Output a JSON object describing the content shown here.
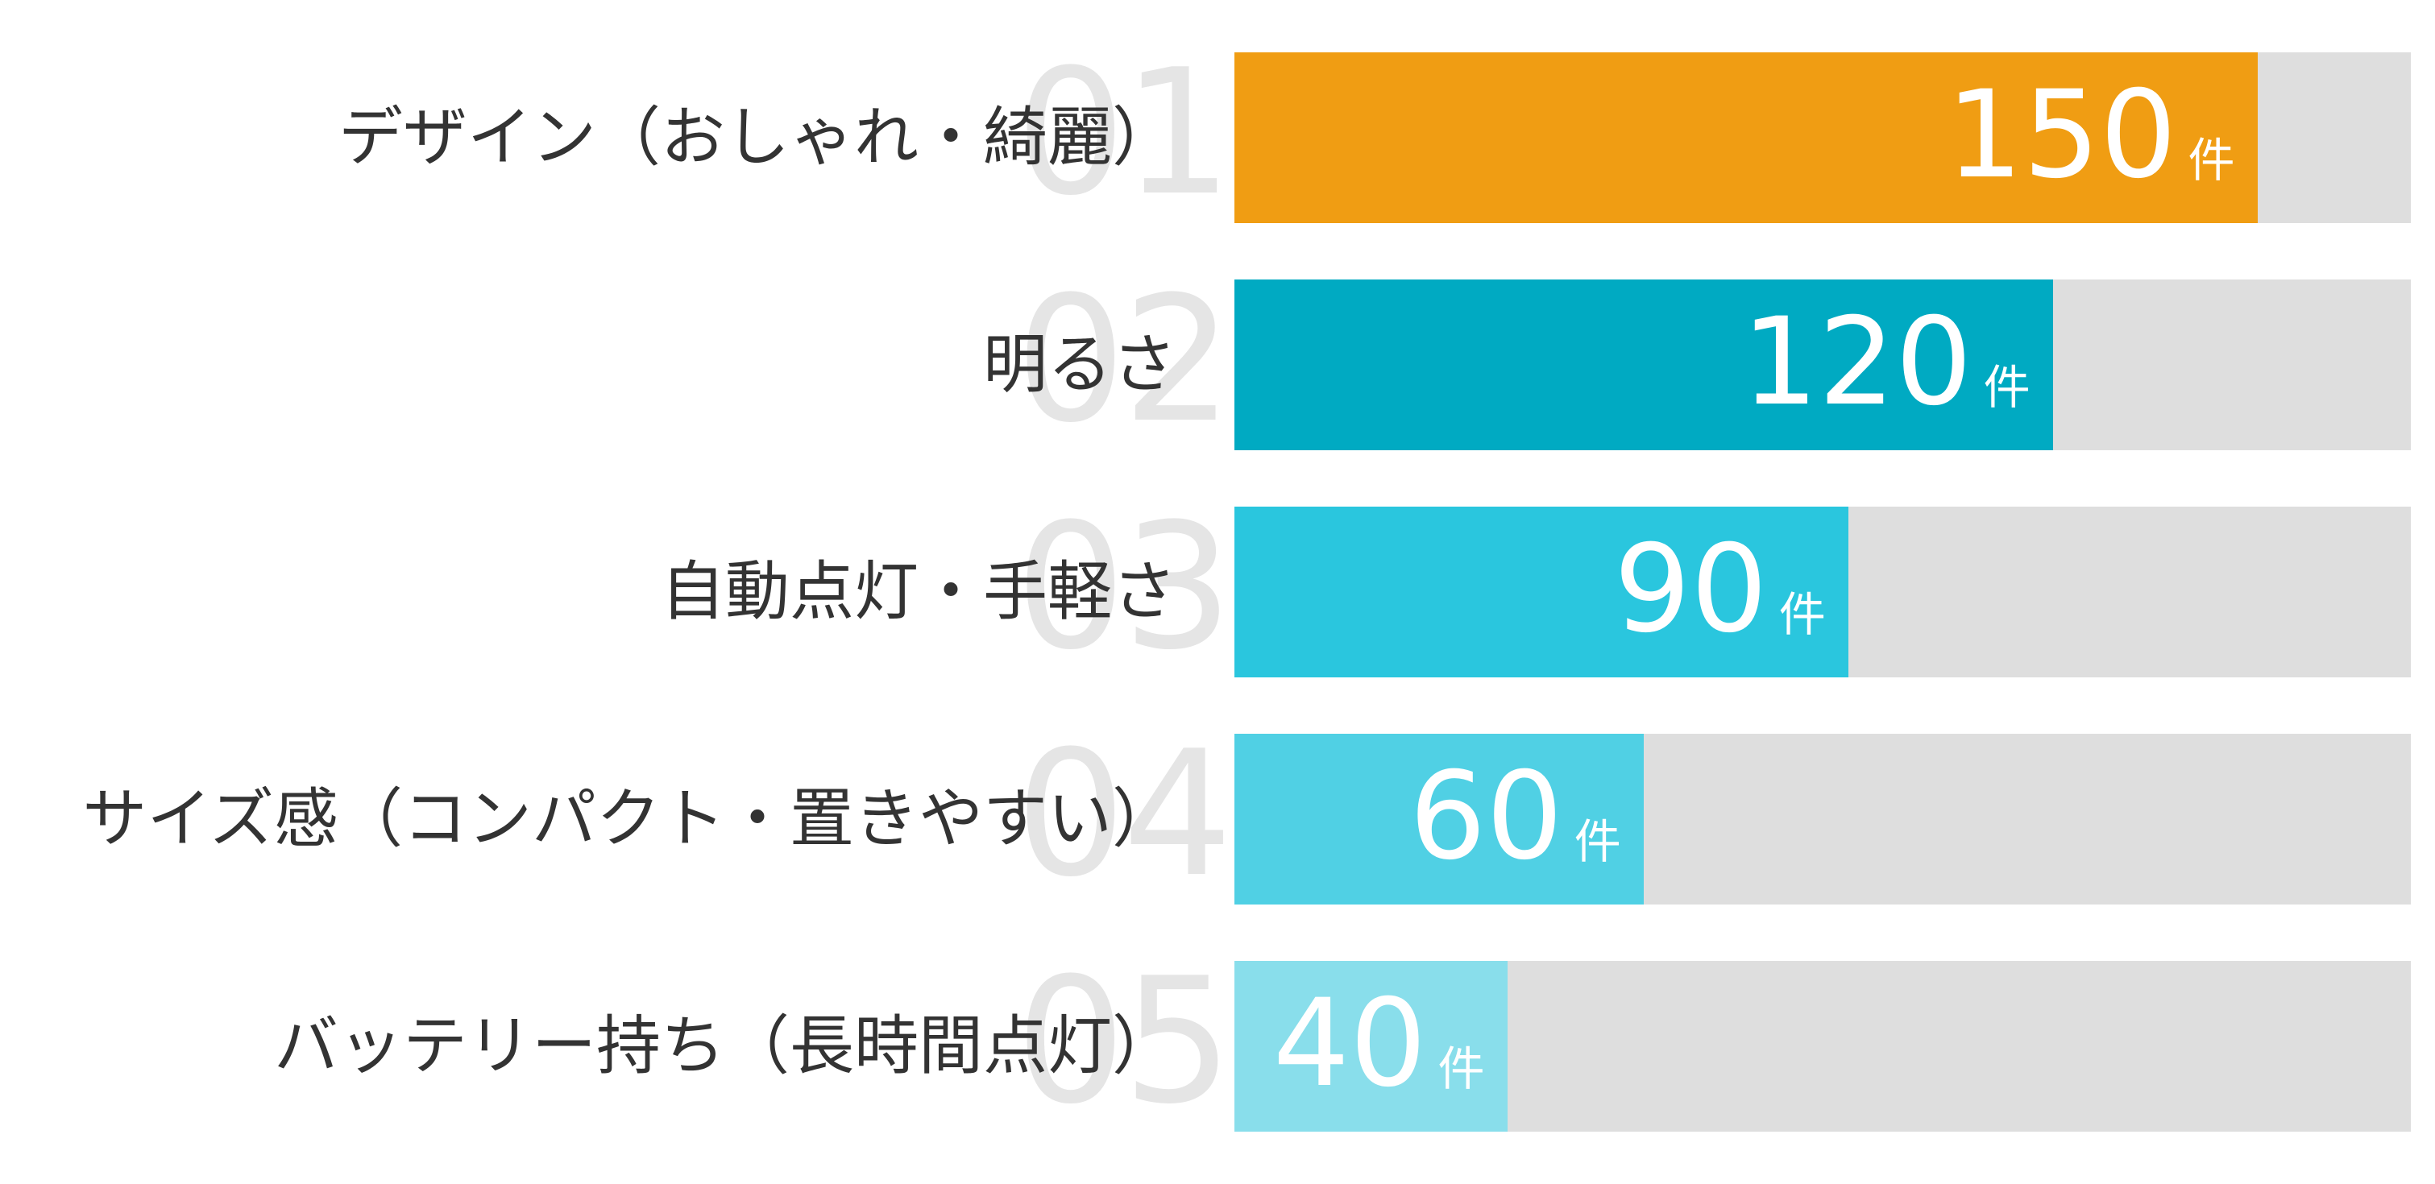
{
  "page": {
    "background_color": "#FFFFFF"
  },
  "chart_data": {
    "type": "bar",
    "orientation": "horizontal",
    "title": "",
    "xlabel": "",
    "ylabel": "",
    "grid": false,
    "legend": false,
    "xlim": [
      0,
      172.5
    ],
    "unit_suffix": "件",
    "categories": [
      "デザイン（おしゃれ・綺麗）",
      "明るさ",
      "自動点灯・手軽さ",
      "サイズ感（コンパクト・置きやすい）",
      "バッテリー持ち（長時間点灯）"
    ],
    "values": [
      150,
      120,
      90,
      60,
      40
    ],
    "rank_labels": [
      "01",
      "02",
      "03",
      "04",
      "05"
    ],
    "bar_colors": [
      "#F09D13",
      "#00AAC2",
      "#2AC6DE",
      "#50D0E4",
      "#89DEEB"
    ],
    "track_color": "#DEDEDE",
    "rank_number_color": "#E5E5E5",
    "category_label_color": "#333333",
    "value_text_color": "#FFFFFF"
  }
}
